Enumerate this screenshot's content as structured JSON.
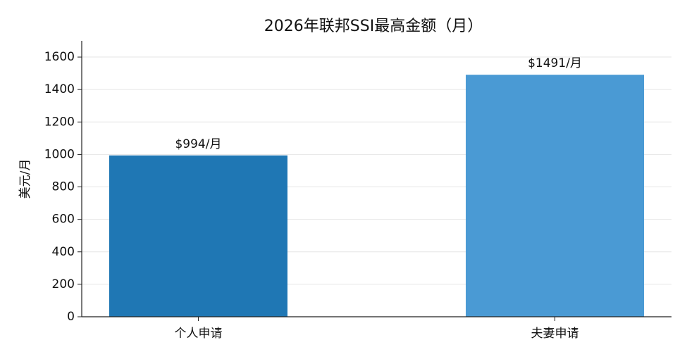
{
  "chart_data": {
    "type": "bar",
    "title": "2026年联邦SSI最高金额（月）",
    "y_label": "美元/月",
    "categories": [
      "个人申请",
      "夫妻申请"
    ],
    "values": [
      994,
      1491
    ],
    "value_labels": [
      "$994/月",
      "$1491/月"
    ],
    "colors": [
      "#1f77b4",
      "#4a9ad4"
    ],
    "ylim": [
      0,
      1700
    ],
    "yticks": [
      0,
      200,
      400,
      600,
      800,
      1000,
      1200,
      1400,
      1600
    ],
    "grid": true
  }
}
